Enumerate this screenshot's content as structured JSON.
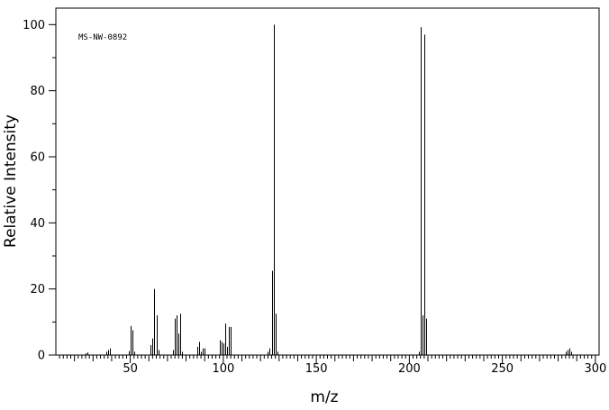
{
  "chart_data": {
    "type": "bar",
    "title": "",
    "annotation": "MS-NW-0892",
    "xlabel": "m/z",
    "ylabel": "Relative Intensity",
    "xlim": [
      10,
      302
    ],
    "ylim": [
      0,
      105
    ],
    "xticks": [
      50,
      100,
      150,
      200,
      250,
      300
    ],
    "yticks": [
      0,
      20,
      40,
      60,
      80,
      100
    ],
    "grid": false,
    "series": [
      {
        "peaks": [
          [
            26,
            0.5
          ],
          [
            27,
            0.8
          ],
          [
            37,
            1.0
          ],
          [
            38,
            1.5
          ],
          [
            39,
            2.0
          ],
          [
            49,
            1.2
          ],
          [
            50,
            8.8
          ],
          [
            51,
            7.5
          ],
          [
            52,
            1.0
          ],
          [
            61,
            3.0
          ],
          [
            62,
            5.0
          ],
          [
            63,
            20.0
          ],
          [
            64,
            12.0
          ],
          [
            65,
            1.5
          ],
          [
            73,
            1.5
          ],
          [
            74,
            11.0
          ],
          [
            75,
            12.0
          ],
          [
            76,
            6.5
          ],
          [
            77,
            12.5
          ],
          [
            78,
            1.0
          ],
          [
            86,
            2.5
          ],
          [
            87,
            4.0
          ],
          [
            88,
            1.0
          ],
          [
            89,
            2.0
          ],
          [
            90,
            2.0
          ],
          [
            98,
            4.5
          ],
          [
            99,
            4.0
          ],
          [
            100,
            3.5
          ],
          [
            101,
            9.5
          ],
          [
            102,
            2.5
          ],
          [
            103,
            8.5
          ],
          [
            104,
            8.5
          ],
          [
            124,
            1.0
          ],
          [
            125,
            2.0
          ],
          [
            126,
            25.5
          ],
          [
            127,
            100.0
          ],
          [
            128,
            12.5
          ],
          [
            129,
            1.0
          ],
          [
            205,
            1.0
          ],
          [
            206,
            99.2
          ],
          [
            207,
            12.0
          ],
          [
            208,
            97.0
          ],
          [
            209,
            11.0
          ],
          [
            284,
            1.0
          ],
          [
            285,
            1.5
          ],
          [
            286,
            2.0
          ],
          [
            287,
            1.0
          ]
        ]
      }
    ]
  }
}
